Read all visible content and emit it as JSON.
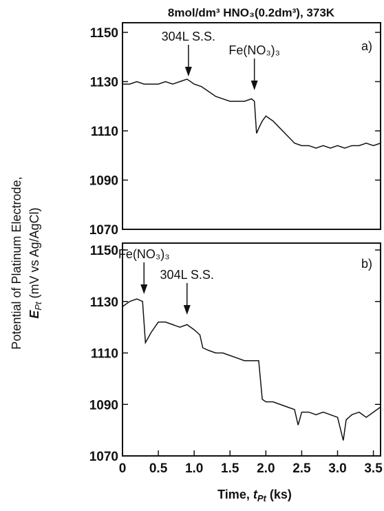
{
  "figure": {
    "title": "8mol/dm³ HNO₃(0.2dm³), 373K",
    "ylabel": [
      "Potential of Platinum Electrode,",
      "E",
      "Pt",
      " (mV vs Ag/AgCl)"
    ],
    "xlabel": [
      "Time,  ",
      "t",
      "Pt",
      " (ks)"
    ]
  },
  "chart_data": [
    {
      "type": "line",
      "panel_label": "a)",
      "x": [
        0,
        0.1,
        0.2,
        0.3,
        0.4,
        0.5,
        0.6,
        0.7,
        0.8,
        0.9,
        1.0,
        1.1,
        1.2,
        1.3,
        1.4,
        1.5,
        1.6,
        1.7,
        1.8,
        1.84,
        1.87,
        1.9,
        1.95,
        2.0,
        2.1,
        2.2,
        2.3,
        2.4,
        2.5,
        2.6,
        2.7,
        2.8,
        2.9,
        3.0,
        3.1,
        3.2,
        3.3,
        3.4,
        3.5,
        3.6
      ],
      "series": [
        {
          "name": "a",
          "color": "#111111",
          "values": [
            1129,
            1129,
            1130,
            1129,
            1129,
            1129,
            1130,
            1129,
            1130,
            1131,
            1129,
            1128,
            1126,
            1124,
            1123,
            1122,
            1122,
            1122,
            1123,
            1122,
            1109,
            1111,
            1114,
            1116,
            1114,
            1111,
            1108,
            1105,
            1104,
            1104,
            1103,
            1104,
            1103,
            1104,
            1103,
            1104,
            1104,
            1105,
            1104,
            1105
          ]
        }
      ],
      "xlim": [
        0,
        3.6
      ],
      "ylim": [
        1070,
        1150
      ],
      "yticks": [
        1070,
        1090,
        1110,
        1130,
        1150
      ],
      "annotations": [
        {
          "text": "304L S.S.",
          "x": 0.92
        },
        {
          "text": "Fe(NO₃)₃",
          "x": 1.84
        }
      ]
    },
    {
      "type": "line",
      "panel_label": "b)",
      "x": [
        0,
        0.1,
        0.2,
        0.28,
        0.32,
        0.36,
        0.4,
        0.5,
        0.6,
        0.7,
        0.8,
        0.9,
        1.0,
        1.08,
        1.12,
        1.2,
        1.3,
        1.4,
        1.5,
        1.6,
        1.7,
        1.8,
        1.9,
        1.95,
        2.0,
        2.1,
        2.2,
        2.3,
        2.4,
        2.45,
        2.5,
        2.6,
        2.7,
        2.8,
        2.9,
        3.0,
        3.08,
        3.12,
        3.2,
        3.3,
        3.4,
        3.5,
        3.6
      ],
      "series": [
        {
          "name": "b",
          "color": "#111111",
          "values": [
            1128,
            1130,
            1131,
            1130,
            1114,
            1116,
            1118,
            1122,
            1122,
            1121,
            1120,
            1121,
            1119,
            1117,
            1112,
            1111,
            1110,
            1110,
            1109,
            1108,
            1107,
            1107,
            1107,
            1092,
            1091,
            1091,
            1090,
            1089,
            1088,
            1082,
            1087,
            1087,
            1086,
            1087,
            1086,
            1085,
            1076,
            1084,
            1086,
            1087,
            1085,
            1087,
            1089
          ]
        }
      ],
      "xlim": [
        0,
        3.6
      ],
      "ylim": [
        1070,
        1150
      ],
      "yticks": [
        1070,
        1090,
        1110,
        1130,
        1150
      ],
      "xticks": [
        0,
        0.5,
        {
          "value": 1,
          "label": "1.0"
        },
        1.5,
        {
          "value": 2,
          "label": "2.0"
        },
        2.5,
        {
          "value": 3,
          "label": "3.0"
        },
        3.5
      ],
      "annotations": [
        {
          "text": "Fe(NO₃)₃",
          "x": 0.3
        },
        {
          "text": "304L S.S.",
          "x": 0.9
        }
      ]
    }
  ]
}
